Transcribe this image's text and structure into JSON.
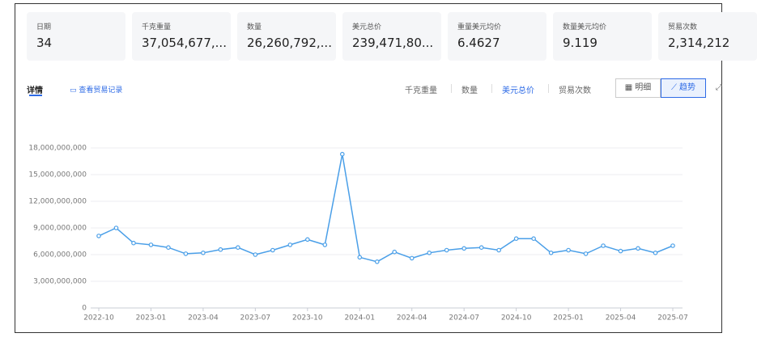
{
  "stats": [
    {
      "label": "日期",
      "value": "34"
    },
    {
      "label": "千克重量",
      "value": "37,054,677,..."
    },
    {
      "label": "数量",
      "value": "26,260,792,..."
    },
    {
      "label": "美元总价",
      "value": "239,471,80..."
    },
    {
      "label": "重量美元均价",
      "value": "6.4627"
    },
    {
      "label": "数量美元均价",
      "value": "9.119"
    },
    {
      "label": "贸易次数",
      "value": "2,314,212"
    }
  ],
  "tabs": {
    "details": "详情",
    "records": "查看贸易记录"
  },
  "metrics": {
    "items": [
      "千克重量",
      "数量",
      "美元总价",
      "贸易次数"
    ],
    "active": 2
  },
  "views": {
    "items": [
      "明细",
      "趋势"
    ],
    "active": 1
  },
  "chart_data": {
    "type": "line",
    "color": "#4a9fe8",
    "grid": true,
    "categories": [
      "2022-10",
      null,
      null,
      "2023-01",
      null,
      null,
      "2023-04",
      null,
      null,
      "2023-07",
      null,
      null,
      "2023-10",
      null,
      null,
      "2024-01",
      null,
      null,
      "2024-04",
      null,
      null,
      "2024-07",
      null,
      null,
      "2024-10",
      null,
      null,
      "2025-01",
      null,
      null,
      "2025-04",
      null,
      null,
      "2025-07"
    ],
    "values": [
      8100000000,
      9000000000,
      7300000000,
      7100000000,
      6800000000,
      6100000000,
      6200000000,
      6570000000,
      6800000000,
      6000000000,
      6500000000,
      7100000000,
      7700000000,
      7100000000,
      17300000000,
      5700000000,
      5200000000,
      6300000000,
      5600000000,
      6200000000,
      6500000000,
      6700000000,
      6800000000,
      6500000000,
      7800000000,
      7800000000,
      6200000000,
      6500000000,
      6100000000,
      7000000000,
      6400000000,
      6700000000,
      6200000000,
      7000000000
    ],
    "ylim": [
      0,
      18000000000
    ],
    "yticks": [
      0,
      {
        "value": 3000000000,
        "label": "3,000,000,000"
      },
      {
        "value": 6000000000,
        "label": "6,000,000,000"
      },
      {
        "value": 9000000000,
        "label": "9,000,000,000"
      },
      {
        "value": 12000000000,
        "label": "12,000,000,000"
      },
      {
        "value": 15000000000,
        "label": "15,000,000,000"
      },
      {
        "value": 18000000000,
        "label": "18,000,000,000"
      }
    ]
  }
}
